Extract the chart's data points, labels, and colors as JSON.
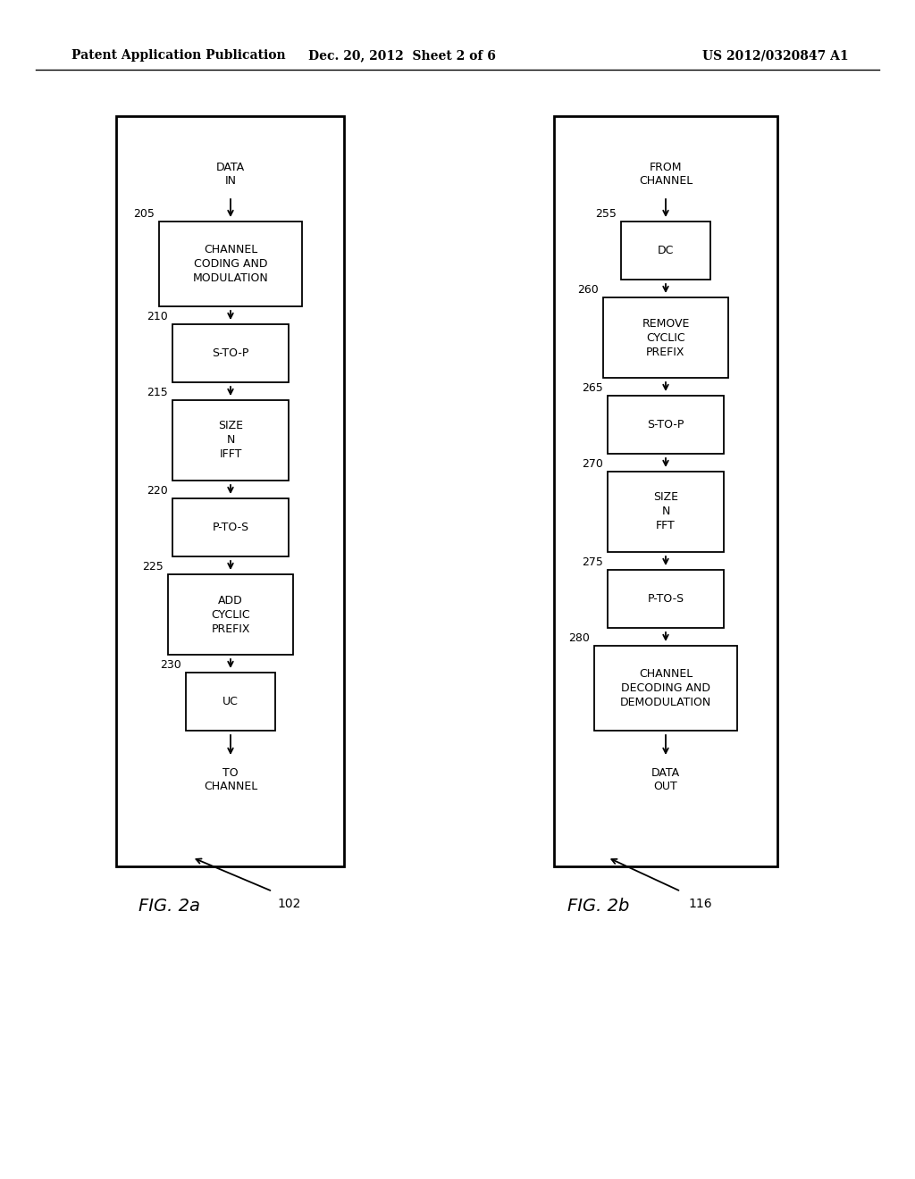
{
  "background_color": "#ffffff",
  "header_left": "Patent Application Publication",
  "header_center": "Dec. 20, 2012  Sheet 2 of 6",
  "header_right": "US 2012/0320847 A1",
  "fig2a_label": "FIG. 2a",
  "fig2b_label": "FIG. 2b",
  "fig2a_ref": "102",
  "fig2b_ref": "116",
  "fig2a_blocks": [
    {
      "label": "DATA\nIN",
      "num": "",
      "is_external": true
    },
    {
      "label": "CHANNEL\nCODING AND\nMODULATION",
      "num": "205",
      "is_external": false
    },
    {
      "label": "S-TO-P",
      "num": "210",
      "is_external": false
    },
    {
      "label": "SIZE\nN\nIFFT",
      "num": "215",
      "is_external": false
    },
    {
      "label": "P-TO-S",
      "num": "220",
      "is_external": false
    },
    {
      "label": "ADD\nCYCLIC\nPREFIX",
      "num": "225",
      "is_external": false
    },
    {
      "label": "UC",
      "num": "230",
      "is_external": false
    },
    {
      "label": "TO\nCHANNEL",
      "num": "",
      "is_external": true
    }
  ],
  "fig2b_blocks": [
    {
      "label": "FROM\nCHANNEL",
      "num": "",
      "is_external": true
    },
    {
      "label": "DC",
      "num": "255",
      "is_external": false
    },
    {
      "label": "REMOVE\nCYCLIC\nPREFIX",
      "num": "260",
      "is_external": false
    },
    {
      "label": "S-TO-P",
      "num": "265",
      "is_external": false
    },
    {
      "label": "SIZE\nN\nFFT",
      "num": "270",
      "is_external": false
    },
    {
      "label": "P-TO-S",
      "num": "275",
      "is_external": false
    },
    {
      "label": "CHANNEL\nDECODING AND\nDEMODULATION",
      "num": "280",
      "is_external": false
    },
    {
      "label": "DATA\nOUT",
      "num": "",
      "is_external": true
    }
  ]
}
